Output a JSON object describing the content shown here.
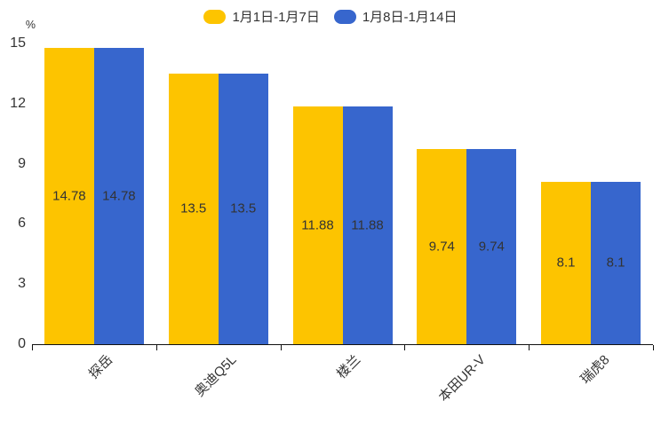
{
  "chart_data": {
    "type": "bar",
    "title": "",
    "unit_label": "%",
    "xlabel": "",
    "ylabel": "%",
    "categories": [
      "探岳",
      "奥迪Q5L",
      "楼兰",
      "本田UR-V",
      "瑞虎8"
    ],
    "series": [
      {
        "name": "1月1日-1月7日",
        "color": "#FDC400",
        "values": [
          14.78,
          13.5,
          11.88,
          9.74,
          8.1
        ]
      },
      {
        "name": "1月8日-1月14日",
        "color": "#3766CD",
        "values": [
          14.78,
          13.5,
          11.88,
          9.74,
          8.1
        ]
      }
    ],
    "ylim": [
      0,
      15
    ],
    "yticks": [
      0,
      3,
      6,
      9,
      12,
      15
    ],
    "grid": false,
    "legend_position": "top",
    "bar_value_labels": true,
    "axis_color": "#111111",
    "text_color": "#333333"
  }
}
